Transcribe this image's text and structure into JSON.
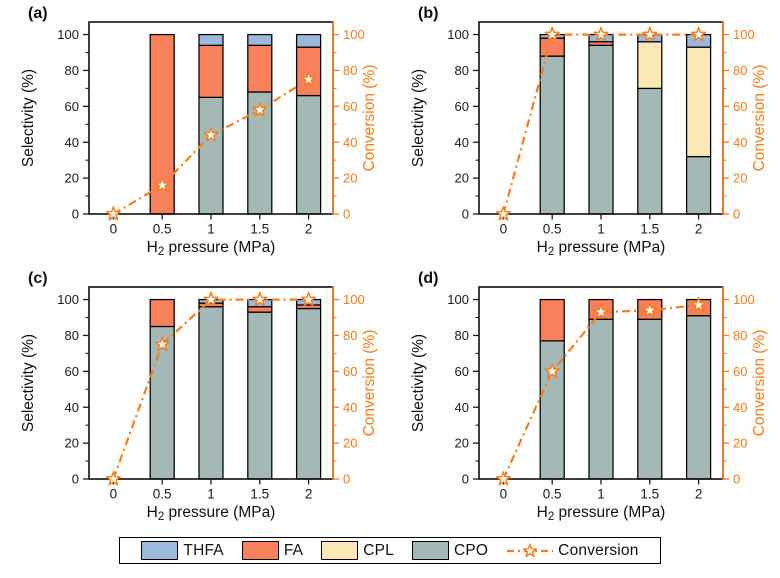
{
  "colors": {
    "THFA": "#9cb9db",
    "FA": "#f8815c",
    "CPL": "#fbe8b6",
    "CPO": "#a4b9b6",
    "conversion": "#f57c1f",
    "star_fill": "#fffef2",
    "axis_black": "#1a1a1a",
    "frame": "#000000"
  },
  "axes": {
    "ylabel_left": "Selectivity (%)",
    "ylabel_right": "Conversion (%)",
    "xlabel_pre": "H",
    "xlabel_sub": "2",
    "xlabel_post": " pressure (MPa)",
    "yticks": [
      0,
      20,
      40,
      60,
      80,
      100
    ],
    "yticks_minor": [
      10,
      30,
      50,
      70,
      90
    ],
    "ylim": [
      0,
      107
    ]
  },
  "legend": {
    "items": [
      {
        "label": "THFA",
        "color_key": "THFA",
        "type": "swatch"
      },
      {
        "label": "FA",
        "color_key": "FA",
        "type": "swatch"
      },
      {
        "label": "CPL",
        "color_key": "CPL",
        "type": "swatch"
      },
      {
        "label": "CPO",
        "color_key": "CPO",
        "type": "swatch"
      },
      {
        "label": "Conversion",
        "color_key": "conversion",
        "type": "line-star"
      }
    ]
  },
  "chart_data": [
    {
      "type": "bar",
      "subtype": "stacked",
      "title": "(a)",
      "xlabel": "H2 pressure (MPa)",
      "ylabel": "Selectivity (%)",
      "y2label": "Conversion (%)",
      "ylim": [
        0,
        107
      ],
      "categories": [
        "0",
        "0.5",
        "1",
        "1.5",
        "2"
      ],
      "stack_order": [
        "CPO",
        "CPL",
        "FA",
        "THFA"
      ],
      "series": [
        {
          "name": "CPO",
          "values": [
            0,
            0,
            65,
            68,
            66
          ]
        },
        {
          "name": "CPL",
          "values": [
            0,
            0,
            0,
            0,
            0
          ]
        },
        {
          "name": "FA",
          "values": [
            0,
            100,
            29,
            26,
            27
          ]
        },
        {
          "name": "THFA",
          "values": [
            0,
            0,
            6,
            6,
            7
          ]
        },
        {
          "name": "Conversion",
          "chart": "line",
          "axis": "right",
          "values": [
            0,
            16,
            44,
            58,
            75
          ]
        }
      ]
    },
    {
      "type": "bar",
      "subtype": "stacked",
      "title": "(b)",
      "xlabel": "H2 pressure (MPa)",
      "ylabel": "Selectivity (%)",
      "y2label": "Conversion (%)",
      "ylim": [
        0,
        107
      ],
      "categories": [
        "0",
        "0.5",
        "1",
        "1.5",
        "2"
      ],
      "stack_order": [
        "CPO",
        "CPL",
        "FA",
        "THFA"
      ],
      "series": [
        {
          "name": "CPO",
          "values": [
            0,
            88,
            94,
            70,
            32
          ]
        },
        {
          "name": "CPL",
          "values": [
            0,
            0,
            0,
            26,
            61
          ]
        },
        {
          "name": "FA",
          "values": [
            0,
            10,
            2,
            0,
            0
          ]
        },
        {
          "name": "THFA",
          "values": [
            0,
            2,
            4,
            4,
            7
          ]
        },
        {
          "name": "Conversion",
          "chart": "line",
          "axis": "right",
          "values": [
            0,
            100,
            100,
            100,
            100
          ]
        }
      ]
    },
    {
      "type": "bar",
      "subtype": "stacked",
      "title": "(c)",
      "xlabel": "H2 pressure (MPa)",
      "ylabel": "Selectivity (%)",
      "y2label": "Conversion (%)",
      "ylim": [
        0,
        107
      ],
      "categories": [
        "0",
        "0.5",
        "1",
        "1.5",
        "2"
      ],
      "stack_order": [
        "CPO",
        "CPL",
        "FA",
        "THFA"
      ],
      "series": [
        {
          "name": "CPO",
          "values": [
            0,
            85,
            96,
            93,
            95
          ]
        },
        {
          "name": "CPL",
          "values": [
            0,
            0,
            0,
            0,
            0
          ]
        },
        {
          "name": "FA",
          "values": [
            0,
            15,
            2,
            3,
            2
          ]
        },
        {
          "name": "THFA",
          "values": [
            0,
            0,
            2,
            4,
            3
          ]
        },
        {
          "name": "Conversion",
          "chart": "line",
          "axis": "right",
          "values": [
            0,
            75,
            100,
            100,
            100
          ]
        }
      ]
    },
    {
      "type": "bar",
      "subtype": "stacked",
      "title": "(d)",
      "xlabel": "H2 pressure (MPa)",
      "ylabel": "Selectivity (%)",
      "y2label": "Conversion (%)",
      "ylim": [
        0,
        107
      ],
      "categories": [
        "0",
        "0.5",
        "1",
        "1.5",
        "2"
      ],
      "stack_order": [
        "CPO",
        "CPL",
        "FA",
        "THFA"
      ],
      "series": [
        {
          "name": "CPO",
          "values": [
            0,
            77,
            89,
            89,
            91
          ]
        },
        {
          "name": "CPL",
          "values": [
            0,
            0,
            0,
            0,
            0
          ]
        },
        {
          "name": "FA",
          "values": [
            0,
            23,
            11,
            11,
            9
          ]
        },
        {
          "name": "THFA",
          "values": [
            0,
            0,
            0,
            0,
            0
          ]
        },
        {
          "name": "Conversion",
          "chart": "line",
          "axis": "right",
          "values": [
            0,
            60,
            93,
            94,
            97
          ]
        }
      ]
    }
  ]
}
